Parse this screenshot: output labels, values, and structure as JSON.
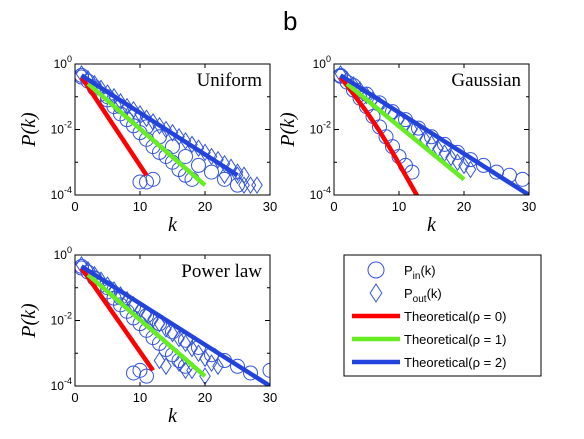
{
  "figure": {
    "panel_letter": "b"
  },
  "legend": {
    "entries": [
      {
        "marker": "circle",
        "label": "P",
        "sub": "in",
        "suffix": "(k)"
      },
      {
        "marker": "diamond",
        "label": "P",
        "sub": "out",
        "suffix": "(k)"
      },
      {
        "marker": "line",
        "color": "#ff0000",
        "label": "Theoretical(ρ = 0)"
      },
      {
        "marker": "line",
        "color": "#66ee22",
        "label": "Theoretical(ρ = 1)"
      },
      {
        "marker": "line",
        "color": "#2244dd",
        "label": "Theoretical(ρ = 2)"
      }
    ]
  },
  "colors": {
    "markers": "#3355dd",
    "rho0": "#ff0000",
    "rho1": "#66ee22",
    "rho2": "#2244dd"
  },
  "chart_data": [
    {
      "type": "scatter",
      "title": "Uniform",
      "xlabel": "k",
      "ylabel": "P(k)",
      "xlim": [
        0,
        30
      ],
      "ylim": [
        0.0001,
        1
      ],
      "yscale": "log",
      "xticks": [
        "0",
        "10",
        "20",
        "30"
      ],
      "yticks": [
        "10^-4",
        "10^-2",
        "10^0"
      ],
      "series": [
        {
          "name": "Pin(k)",
          "marker": "circle",
          "x": [
            1,
            2,
            3,
            4,
            5,
            6,
            7,
            8,
            9,
            10,
            11,
            12,
            13,
            14,
            15,
            16,
            17,
            18
          ],
          "y": [
            0.45,
            0.3,
            0.18,
            0.12,
            0.08,
            0.05,
            0.03,
            0.02,
            0.013,
            0.008,
            0.005,
            0.003,
            0.002,
            0.0015,
            0.001,
            0.0006,
            0.0004,
            0.0003
          ]
        },
        {
          "name": "Pout(k)",
          "marker": "diamond",
          "x": [
            1,
            2,
            3,
            4,
            5,
            6,
            7,
            8,
            9,
            10,
            11,
            12,
            13,
            14,
            15,
            16,
            17,
            18,
            19,
            20,
            21,
            22,
            23,
            24,
            25,
            26
          ],
          "y": [
            0.5,
            0.35,
            0.25,
            0.18,
            0.13,
            0.1,
            0.07,
            0.05,
            0.04,
            0.03,
            0.022,
            0.017,
            0.013,
            0.01,
            0.008,
            0.006,
            0.0045,
            0.0035,
            0.0027,
            0.002,
            0.0015,
            0.0012,
            0.0009,
            0.0007,
            0.0005,
            0.0004
          ]
        },
        {
          "name": "Pin(k)",
          "marker": "circle",
          "x": [
            1,
            3,
            5,
            7,
            9,
            11,
            13,
            15,
            17,
            19,
            21,
            23,
            25
          ],
          "y": [
            0.4,
            0.2,
            0.1,
            0.05,
            0.025,
            0.012,
            0.006,
            0.003,
            0.0015,
            0.0008,
            0.0005,
            0.0003,
            0.0002
          ]
        },
        {
          "name": "Pin(k)",
          "marker": "circle",
          "x": [
            10,
            11,
            12
          ],
          "y": [
            0.00025,
            0.00025,
            0.0003
          ]
        },
        {
          "name": "Pout(k)",
          "marker": "diamond",
          "x": [
            23,
            25,
            26,
            27,
            28
          ],
          "y": [
            0.0004,
            0.0004,
            0.0002,
            0.0002,
            0.0002
          ]
        }
      ],
      "lines": [
        {
          "name": "Theoretical(ρ = 0)",
          "color": "#ff0000",
          "x": [
            1,
            11
          ],
          "y": [
            0.4,
            0.0004
          ]
        },
        {
          "name": "Theoretical(ρ = 1)",
          "color": "#66ee22",
          "x": [
            2,
            20
          ],
          "y": [
            0.25,
            0.0002
          ]
        },
        {
          "name": "Theoretical(ρ = 2)",
          "color": "#2244dd",
          "x": [
            1,
            25
          ],
          "y": [
            0.45,
            0.0004
          ]
        }
      ]
    },
    {
      "type": "scatter",
      "title": "Gaussian",
      "xlabel": "k",
      "ylabel": "P(k)",
      "xlim": [
        0,
        30
      ],
      "ylim": [
        0.0001,
        1
      ],
      "yscale": "log",
      "xticks": [
        "0",
        "10",
        "20",
        "30"
      ],
      "yticks": [
        "10^-4",
        "10^-2",
        "10^0"
      ],
      "series": [
        {
          "name": "Pin(k)",
          "marker": "circle",
          "x": [
            1,
            2,
            3,
            4,
            5,
            6,
            7,
            8,
            9,
            10,
            11,
            12
          ],
          "y": [
            0.45,
            0.28,
            0.16,
            0.09,
            0.05,
            0.025,
            0.012,
            0.006,
            0.003,
            0.0015,
            0.0008,
            0.0005
          ]
        },
        {
          "name": "Pout(k)",
          "marker": "diamond",
          "x": [
            1,
            2,
            3,
            4,
            5,
            6,
            7,
            8,
            9,
            10,
            11,
            12,
            13,
            14,
            15,
            16,
            17,
            18,
            19,
            20,
            21
          ],
          "y": [
            0.5,
            0.33,
            0.23,
            0.16,
            0.11,
            0.08,
            0.055,
            0.04,
            0.028,
            0.02,
            0.014,
            0.01,
            0.007,
            0.005,
            0.0036,
            0.0026,
            0.0019,
            0.0014,
            0.001,
            0.0008,
            0.0006
          ]
        },
        {
          "name": "Pin(k)",
          "marker": "circle",
          "x": [
            1,
            3,
            5,
            7,
            9,
            11,
            13,
            15,
            17,
            19,
            21,
            23,
            25,
            27,
            29
          ],
          "y": [
            0.42,
            0.22,
            0.12,
            0.065,
            0.035,
            0.02,
            0.011,
            0.006,
            0.0035,
            0.002,
            0.0012,
            0.0008,
            0.0005,
            0.0004,
            0.0003
          ]
        }
      ],
      "lines": [
        {
          "name": "Theoretical(ρ = 0)",
          "color": "#ff0000",
          "x": [
            1,
            3,
            5,
            7,
            9,
            11,
            13
          ],
          "y": [
            0.4,
            0.12,
            0.035,
            0.009,
            0.002,
            0.0004,
            8e-05
          ]
        },
        {
          "name": "Theoretical(ρ = 1)",
          "color": "#66ee22",
          "x": [
            2,
            20
          ],
          "y": [
            0.25,
            0.0003
          ]
        },
        {
          "name": "Theoretical(ρ = 2)",
          "color": "#2244dd",
          "x": [
            1,
            30
          ],
          "y": [
            0.45,
            0.0001
          ]
        }
      ]
    },
    {
      "type": "scatter",
      "title": "Power law",
      "xlabel": "k",
      "ylabel": "P(k)",
      "xlim": [
        0,
        30
      ],
      "ylim": [
        0.0001,
        1
      ],
      "yscale": "log",
      "xticks": [
        "0",
        "10",
        "20",
        "30"
      ],
      "yticks": [
        "10^-4",
        "10^-2",
        "10^0"
      ],
      "series": [
        {
          "name": "Pin(k)",
          "marker": "circle",
          "x": [
            1,
            2,
            3,
            4,
            5,
            6,
            7,
            8,
            9,
            10,
            11,
            12,
            13,
            14,
            15,
            16,
            17
          ],
          "y": [
            0.45,
            0.3,
            0.19,
            0.12,
            0.075,
            0.048,
            0.03,
            0.019,
            0.012,
            0.008,
            0.005,
            0.003,
            0.002,
            0.0013,
            0.0009,
            0.0006,
            0.0004
          ]
        },
        {
          "name": "Pout(k)",
          "marker": "diamond",
          "x": [
            1,
            2,
            3,
            4,
            5,
            6,
            7,
            8,
            9,
            10,
            11,
            12,
            13,
            14,
            15,
            16,
            17,
            18,
            19,
            20,
            21,
            22
          ],
          "y": [
            0.5,
            0.35,
            0.25,
            0.17,
            0.12,
            0.085,
            0.06,
            0.043,
            0.03,
            0.021,
            0.015,
            0.011,
            0.008,
            0.0055,
            0.004,
            0.0028,
            0.002,
            0.0014,
            0.001,
            0.0007,
            0.0005,
            0.0004
          ]
        },
        {
          "name": "Pin(k)",
          "marker": "circle",
          "x": [
            1,
            3,
            5,
            7,
            9,
            11,
            13,
            15,
            17,
            19,
            21,
            23,
            25,
            27,
            30
          ],
          "y": [
            0.4,
            0.2,
            0.1,
            0.05,
            0.026,
            0.014,
            0.008,
            0.0045,
            0.0025,
            0.0015,
            0.0009,
            0.0006,
            0.0004,
            0.00025,
            0.0003
          ]
        },
        {
          "name": "Pin(k)",
          "marker": "circle",
          "x": [
            9,
            10,
            11
          ],
          "y": [
            0.00025,
            0.0003,
            0.0002
          ]
        },
        {
          "name": "Pout(k)",
          "marker": "diamond",
          "x": [
            13,
            14,
            16,
            17,
            18,
            20
          ],
          "y": [
            0.0006,
            0.0004,
            0.0005,
            0.0003,
            0.0003,
            0.0002
          ]
        }
      ],
      "lines": [
        {
          "name": "Theoretical(ρ = 0)",
          "color": "#ff0000",
          "x": [
            1,
            12
          ],
          "y": [
            0.4,
            0.0003
          ]
        },
        {
          "name": "Theoretical(ρ = 1)",
          "color": "#66ee22",
          "x": [
            2,
            20
          ],
          "y": [
            0.25,
            0.0002
          ]
        },
        {
          "name": "Theoretical(ρ = 2)",
          "color": "#2244dd",
          "x": [
            1,
            30
          ],
          "y": [
            0.45,
            0.0001
          ]
        }
      ]
    }
  ]
}
